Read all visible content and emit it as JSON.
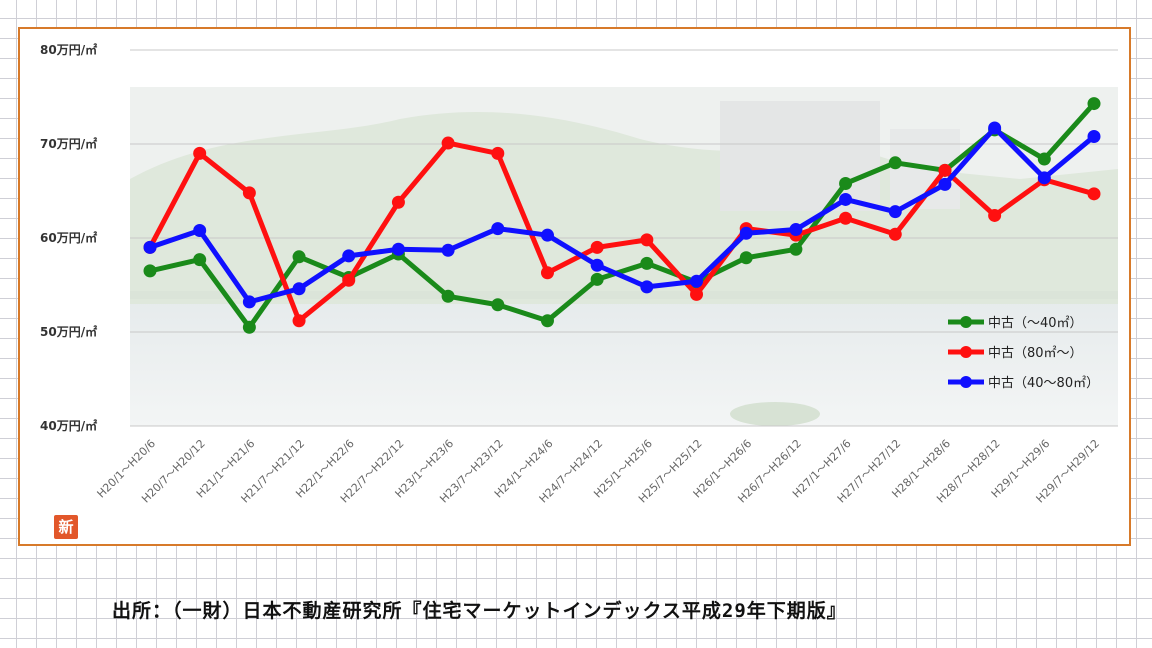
{
  "chart_data": {
    "type": "line",
    "ylim": [
      40,
      80
    ],
    "yticks": [
      {
        "value": 80,
        "label": "80万円/㎡"
      },
      {
        "value": 70,
        "label": "70万円/㎡"
      },
      {
        "value": 60,
        "label": "60万円/㎡"
      },
      {
        "value": 50,
        "label": "50万円/㎡"
      },
      {
        "value": 40,
        "label": "40万円/㎡"
      }
    ],
    "grid": true,
    "legend_position": "right",
    "categories": [
      "H20/1～H20/6",
      "H20/7～H20/12",
      "H21/1～H21/6",
      "H21/7～H21/12",
      "H22/1～H22/6",
      "H22/7～H22/12",
      "H23/1～H23/6",
      "H23/7～H23/12",
      "H24/1～H24/6",
      "H24/7～H24/12",
      "H25/1～H25/6",
      "H25/7～H25/12",
      "H26/1～H26/6",
      "H26/7～H26/12",
      "H27/1～H27/6",
      "H27/7～H27/12",
      "H28/1～H28/6",
      "H28/7～H28/12",
      "H29/1～H29/6",
      "H29/7～H29/12"
    ],
    "series": [
      {
        "name": "中古（～40㎡）",
        "color": "#1a8a1a",
        "values": [
          56.5,
          57.7,
          50.5,
          58.0,
          55.8,
          58.3,
          53.8,
          52.9,
          51.2,
          55.6,
          57.3,
          55.3,
          57.9,
          58.8,
          65.8,
          68.0,
          67.2,
          71.5,
          68.4,
          74.3
        ]
      },
      {
        "name": "中古（80㎡～）",
        "color": "#ff1010",
        "values": [
          59.0,
          69.0,
          64.8,
          51.2,
          55.5,
          63.8,
          70.1,
          69.0,
          56.3,
          59.0,
          59.8,
          54.0,
          61.0,
          60.3,
          62.1,
          60.4,
          67.2,
          62.4,
          66.2,
          64.7
        ]
      },
      {
        "name": "中古（40～80㎡）",
        "color": "#1010ff",
        "values": [
          59.0,
          60.8,
          53.2,
          54.6,
          58.1,
          58.8,
          58.7,
          61.0,
          60.3,
          57.1,
          54.8,
          55.4,
          60.5,
          60.9,
          64.1,
          62.8,
          65.7,
          71.7,
          66.4,
          70.8
        ]
      }
    ]
  },
  "badge_text": "新",
  "source_note": "出所：（一財）日本不動産研究所『住宅マーケットインデックス平成29年下期版』"
}
